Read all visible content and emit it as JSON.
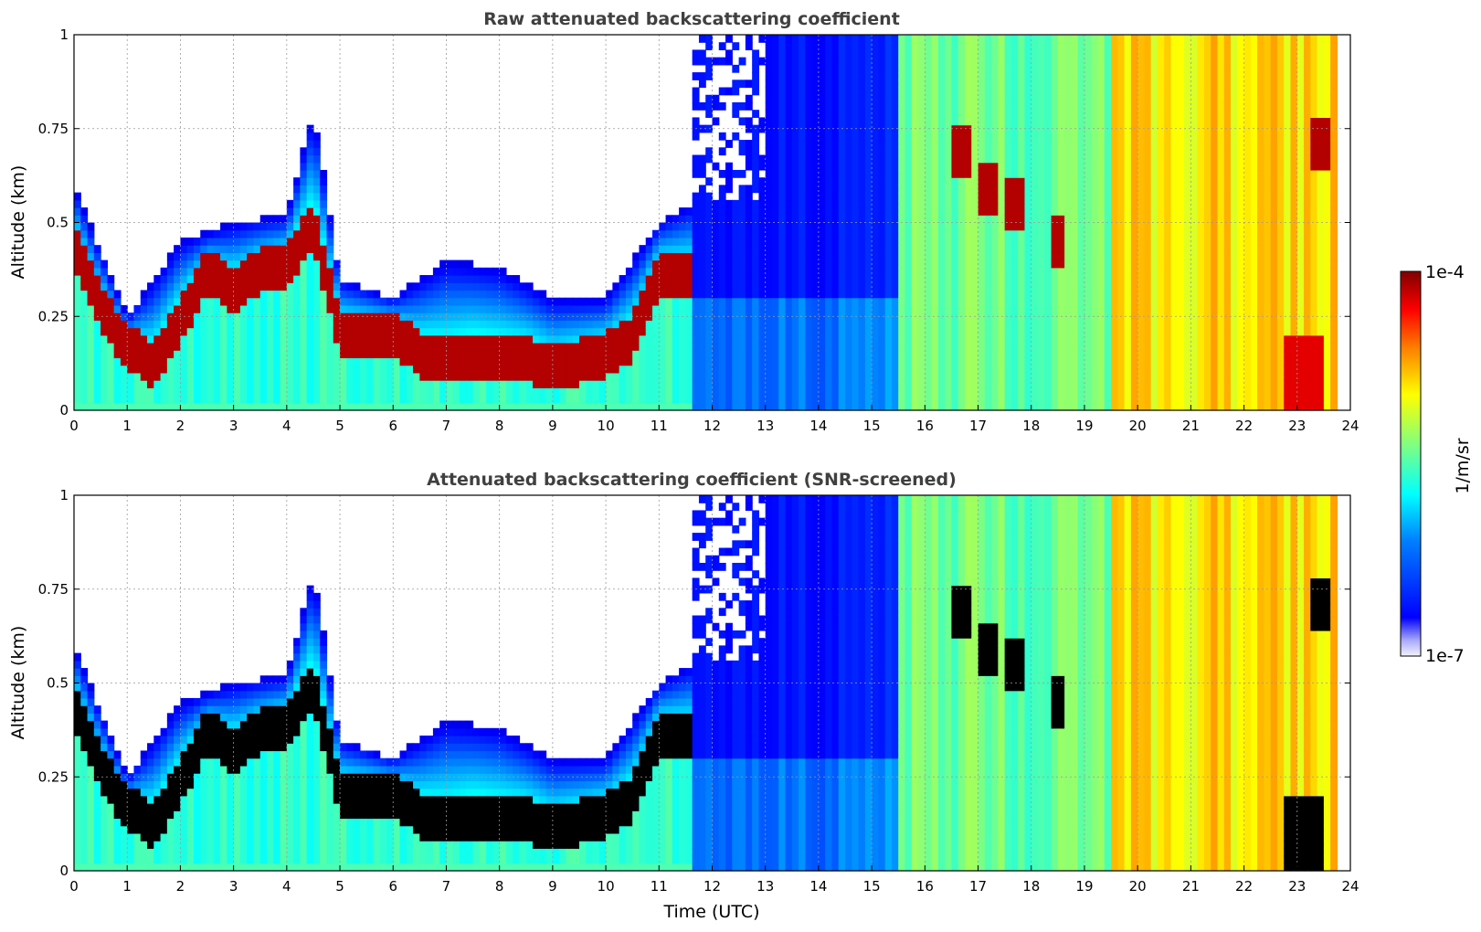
{
  "chart_data": [
    {
      "type": "heatmap",
      "title": "Raw attenuated backscattering coefficient",
      "xlabel": "",
      "ylabel": "Altitude (km)",
      "xlim": [
        0,
        24
      ],
      "ylim": [
        0,
        1
      ],
      "x_ticks": [
        "0",
        "1",
        "2",
        "3",
        "4",
        "5",
        "6",
        "7",
        "8",
        "9",
        "10",
        "11",
        "12",
        "13",
        "14",
        "15",
        "16",
        "17",
        "18",
        "19",
        "20",
        "21",
        "22",
        "23",
        "24"
      ],
      "y_ticks": [
        "0",
        "0.25",
        "0.5",
        "0.75",
        "1"
      ],
      "grid": true,
      "colorscale": "jet",
      "color_range": [
        1e-07,
        0.0001
      ],
      "screened": false,
      "features": {
        "boundary_layer_top_km": [
          [
            0,
            0.45
          ],
          [
            0.5,
            0.28
          ],
          [
            1,
            0.18
          ],
          [
            1.5,
            0.13
          ],
          [
            2,
            0.25
          ],
          [
            2.5,
            0.38
          ],
          [
            3,
            0.33
          ],
          [
            3.5,
            0.38
          ],
          [
            4,
            0.4
          ],
          [
            4.5,
            0.5
          ],
          [
            5,
            0.22
          ],
          [
            5.5,
            0.22
          ],
          [
            6,
            0.22
          ],
          [
            6.5,
            0.16
          ],
          [
            7,
            0.14
          ],
          [
            7.5,
            0.16
          ],
          [
            8,
            0.15
          ],
          [
            8.5,
            0.15
          ],
          [
            9,
            0.12
          ],
          [
            9.5,
            0.14
          ],
          [
            10,
            0.16
          ],
          [
            10.5,
            0.2
          ],
          [
            11,
            0.38
          ],
          [
            11.6,
            0.36
          ]
        ],
        "aerosol_layer_top_km": [
          [
            0,
            0.6
          ],
          [
            1,
            0.25
          ],
          [
            2,
            0.45
          ],
          [
            3,
            0.5
          ],
          [
            4,
            0.52
          ],
          [
            4.5,
            0.8
          ],
          [
            5,
            0.35
          ],
          [
            6,
            0.3
          ],
          [
            7,
            0.4
          ],
          [
            8,
            0.38
          ],
          [
            9,
            0.3
          ],
          [
            10,
            0.3
          ],
          [
            11,
            0.5
          ],
          [
            11.6,
            0.55
          ]
        ],
        "noise_region_start_h": 11.6,
        "clear_region": [
          [
            11.7,
            15.5
          ]
        ],
        "high_signal_region": [
          [
            15.5,
            23.8
          ]
        ],
        "cloud_patches": [
          [
            16.7,
            0.7
          ],
          [
            17.2,
            0.6
          ],
          [
            17.7,
            0.55
          ],
          [
            18.5,
            0.45
          ],
          [
            23.4,
            0.72
          ]
        ]
      }
    },
    {
      "type": "heatmap",
      "title": "Attenuated backscattering coefficient (SNR-screened)",
      "xlabel": "Time (UTC)",
      "ylabel": "Altitude (km)",
      "xlim": [
        0,
        24
      ],
      "ylim": [
        0,
        1
      ],
      "x_ticks": [
        "0",
        "1",
        "2",
        "3",
        "4",
        "5",
        "6",
        "7",
        "8",
        "9",
        "10",
        "11",
        "12",
        "13",
        "14",
        "15",
        "16",
        "17",
        "18",
        "19",
        "20",
        "21",
        "22",
        "23",
        "24"
      ],
      "y_ticks": [
        "0",
        "0.25",
        "0.5",
        "0.75",
        "1"
      ],
      "grid": true,
      "colorscale": "jet",
      "color_range": [
        1e-07,
        0.0001
      ],
      "screened": true
    }
  ],
  "colorbar": {
    "label": "1/m/sr",
    "max_label": "1e-4",
    "min_label": "1e-7",
    "colors": [
      "#00007f",
      "#0000ff",
      "#007fff",
      "#00ffff",
      "#7fff7f",
      "#ffff00",
      "#ff7f00",
      "#ff0000",
      "#7f0000"
    ]
  }
}
